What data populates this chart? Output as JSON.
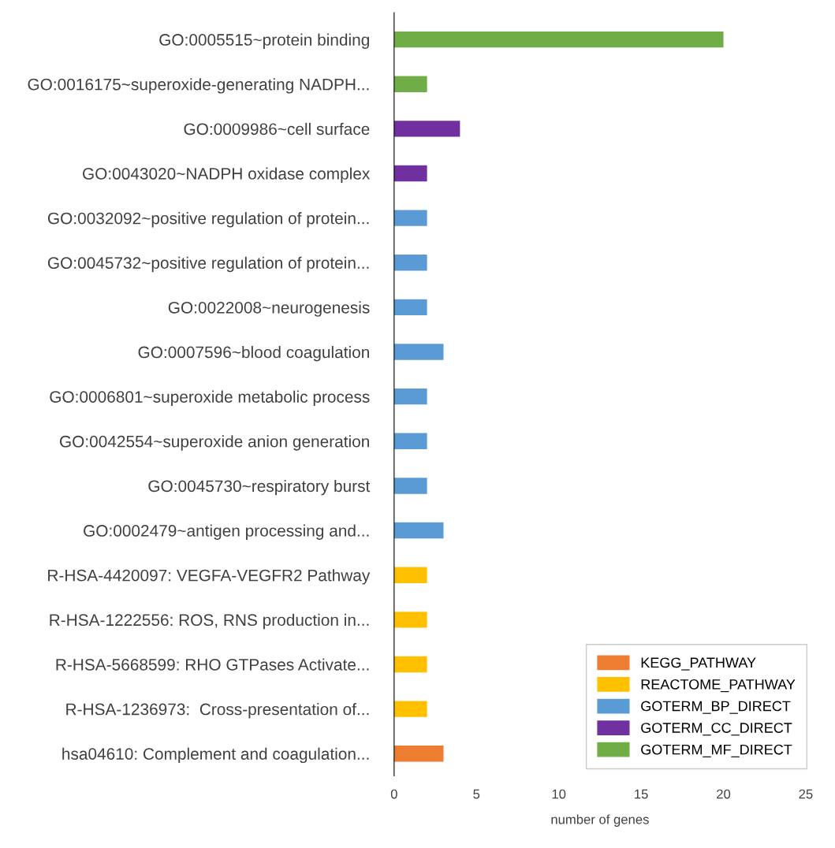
{
  "chart_data": {
    "type": "bar",
    "orientation": "horizontal",
    "xlabel": "number of genes",
    "categories": [
      "GO:0005515~protein binding",
      "GO:0016175~superoxide-generating NADPH...",
      "GO:0009986~cell surface",
      "GO:0043020~NADPH oxidase complex",
      "GO:0032092~positive regulation of protein...",
      "GO:0045732~positive regulation of protein...",
      "GO:0022008~neurogenesis",
      "GO:0007596~blood coagulation",
      "GO:0006801~superoxide metabolic process",
      "GO:0042554~superoxide anion generation",
      "GO:0045730~respiratory burst",
      "GO:0002479~antigen processing and...",
      "R-HSA-4420097: VEGFA-VEGFR2 Pathway",
      "R-HSA-1222556: ROS, RNS production in...",
      "R-HSA-5668599: RHO GTPases Activate...",
      "R-HSA-1236973:  Cross-presentation of...",
      "hsa04610: Complement and coagulation..."
    ],
    "series": [
      {
        "name": "KEGG_PATHWAY",
        "color": "#ed7d31",
        "values": [
          null,
          null,
          null,
          null,
          null,
          null,
          null,
          null,
          null,
          null,
          null,
          null,
          null,
          null,
          null,
          null,
          3
        ]
      },
      {
        "name": "REACTOME_PATHWAY",
        "color": "#ffc000",
        "values": [
          null,
          null,
          null,
          null,
          null,
          null,
          null,
          null,
          null,
          null,
          null,
          null,
          2,
          2,
          2,
          2,
          null
        ]
      },
      {
        "name": "GOTERM_BP_DIRECT",
        "color": "#5b9bd5",
        "values": [
          null,
          null,
          null,
          null,
          2,
          2,
          2,
          3,
          2,
          2,
          2,
          3,
          null,
          null,
          null,
          null,
          null
        ]
      },
      {
        "name": "GOTERM_CC_DIRECT",
        "color": "#7030a0",
        "values": [
          null,
          null,
          4,
          2,
          null,
          null,
          null,
          null,
          null,
          null,
          null,
          null,
          null,
          null,
          null,
          null,
          null
        ]
      },
      {
        "name": "GOTERM_MF_DIRECT",
        "color": "#70ad47",
        "values": [
          20,
          2,
          null,
          null,
          null,
          null,
          null,
          null,
          null,
          null,
          null,
          null,
          null,
          null,
          null,
          null,
          null
        ]
      }
    ],
    "xlim": [
      0,
      25
    ],
    "xticks": [
      0,
      5,
      10,
      15,
      20,
      25
    ],
    "grid": false,
    "legend": "bottom right"
  }
}
